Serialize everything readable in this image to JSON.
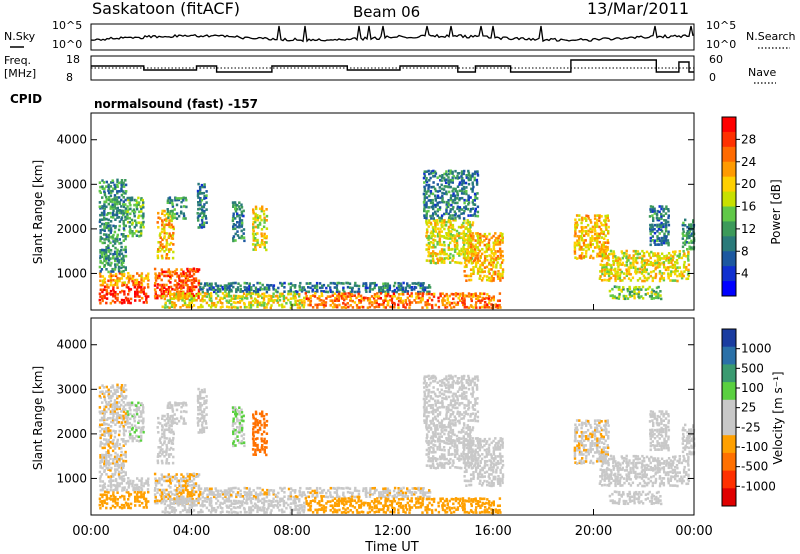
{
  "header": {
    "station": "Saskatoon (fitACF)",
    "beam": "Beam 06",
    "date": "13/Mar/2011"
  },
  "noise_panel": {
    "left_label": "N.Sky",
    "right_label": "N.Search",
    "left_ticks": [
      "10^5",
      "10^0"
    ],
    "right_ticks": [
      "10^5",
      "10^0"
    ]
  },
  "freq_panel": {
    "left_label_1": "Freq.",
    "left_label_2": "[MHz]",
    "right_label": "Nave",
    "left_ticks": [
      "18",
      "8"
    ],
    "right_ticks": [
      "60",
      "0"
    ]
  },
  "cpid": {
    "label": "CPID",
    "value": "normalsound (fast) -157"
  },
  "power_panel": {
    "ylabel": "Slant Range [km]",
    "yticks": [
      "4000",
      "3000",
      "2000",
      "1000"
    ],
    "colorbar_label": "Power [dB]",
    "colorbar_ticks": [
      "28",
      "24",
      "20",
      "16",
      "12",
      "8",
      "4"
    ],
    "colorbar_colors": [
      "#ff0000",
      "#ff3000",
      "#ff6a00",
      "#ff9a00",
      "#ffd000",
      "#c8e000",
      "#60c848",
      "#3c9a5a",
      "#2a7a7a",
      "#1c58a0",
      "#1030d0",
      "#0000ff"
    ]
  },
  "velocity_panel": {
    "ylabel": "Slant Range [km]",
    "yticks": [
      "4000",
      "3000",
      "2000",
      "1000"
    ],
    "colorbar_label": "Velocity [m s⁻¹]",
    "colorbar_ticks": [
      "1000",
      "500",
      "100",
      "25",
      "-25",
      "-100",
      "-500",
      "-1000"
    ],
    "colorbar_colors": [
      "#1a3ca0",
      "#2a70a8",
      "#3a9a70",
      "#5ad040",
      "#c8c8c8",
      "#c8c8c8",
      "#ffa000",
      "#ff7000",
      "#ff3000",
      "#e00000"
    ]
  },
  "x_axis": {
    "ticks": [
      "00:00",
      "04:00",
      "08:00",
      "12:00",
      "16:00",
      "20:00",
      "00:00"
    ],
    "label": "Time UT"
  },
  "chart_data": {
    "type": "heatmap",
    "x_range_hours": [
      0,
      24
    ],
    "y_range_km": [
      180,
      4600
    ],
    "power_range_db": [
      0,
      30
    ],
    "velocity_range_ms": [
      -1000,
      1000
    ],
    "scatter_regions": [
      {
        "t0": 0.3,
        "t1": 2.3,
        "r0": 300,
        "r1": 700,
        "power": 28,
        "velocity": -300
      },
      {
        "t0": 0.3,
        "t1": 2.3,
        "r0": 700,
        "r1": 1000,
        "power": 22,
        "velocity": 100
      },
      {
        "t0": 0.3,
        "t1": 1.4,
        "r0": 1000,
        "r1": 3100,
        "power": 10,
        "velocity": -150
      },
      {
        "t0": 1.4,
        "t1": 2.1,
        "r0": 1800,
        "r1": 2700,
        "power": 12,
        "velocity": 150
      },
      {
        "t0": 2.5,
        "t1": 4.3,
        "r0": 400,
        "r1": 1100,
        "power": 26,
        "velocity": -200
      },
      {
        "t0": 2.6,
        "t1": 3.3,
        "r0": 1300,
        "r1": 2400,
        "power": 20,
        "velocity": 0
      },
      {
        "t0": 3.0,
        "t1": 3.8,
        "r0": 2200,
        "r1": 2700,
        "power": 10,
        "velocity": -100
      },
      {
        "t0": 4.2,
        "t1": 4.6,
        "r0": 2000,
        "r1": 3000,
        "power": 8,
        "velocity": -60
      },
      {
        "t0": 5.6,
        "t1": 6.1,
        "r0": 1700,
        "r1": 2600,
        "power": 8,
        "velocity": 200
      },
      {
        "t0": 6.4,
        "t1": 7.0,
        "r0": 1500,
        "r1": 2500,
        "power": 18,
        "velocity": -500
      },
      {
        "t0": 2.8,
        "t1": 8.5,
        "r0": 200,
        "r1": 550,
        "power": 18,
        "velocity": 10
      },
      {
        "t0": 4.3,
        "t1": 13.5,
        "r0": 550,
        "r1": 780,
        "power": 8,
        "velocity": -150
      },
      {
        "t0": 8.5,
        "t1": 16.3,
        "r0": 200,
        "r1": 550,
        "power": 24,
        "velocity": -300
      },
      {
        "t0": 13.3,
        "t1": 15.2,
        "r0": 1200,
        "r1": 2200,
        "power": 18,
        "velocity": 0
      },
      {
        "t0": 13.2,
        "t1": 15.4,
        "r0": 2200,
        "r1": 3300,
        "power": 8,
        "velocity": -20
      },
      {
        "t0": 14.8,
        "t1": 16.4,
        "r0": 800,
        "r1": 1900,
        "power": 20,
        "velocity": 0
      },
      {
        "t0": 19.2,
        "t1": 20.6,
        "r0": 1300,
        "r1": 2300,
        "power": 20,
        "velocity": -150
      },
      {
        "t0": 20.2,
        "t1": 23.8,
        "r0": 800,
        "r1": 1500,
        "power": 18,
        "velocity": -20
      },
      {
        "t0": 20.6,
        "t1": 22.7,
        "r0": 400,
        "r1": 700,
        "power": 14,
        "velocity": 50
      },
      {
        "t0": 22.2,
        "t1": 23.0,
        "r0": 1600,
        "r1": 2500,
        "power": 8,
        "velocity": -30
      },
      {
        "t0": 23.5,
        "t1": 24.0,
        "r0": 1500,
        "r1": 2200,
        "power": 10,
        "velocity": 100
      }
    ]
  }
}
